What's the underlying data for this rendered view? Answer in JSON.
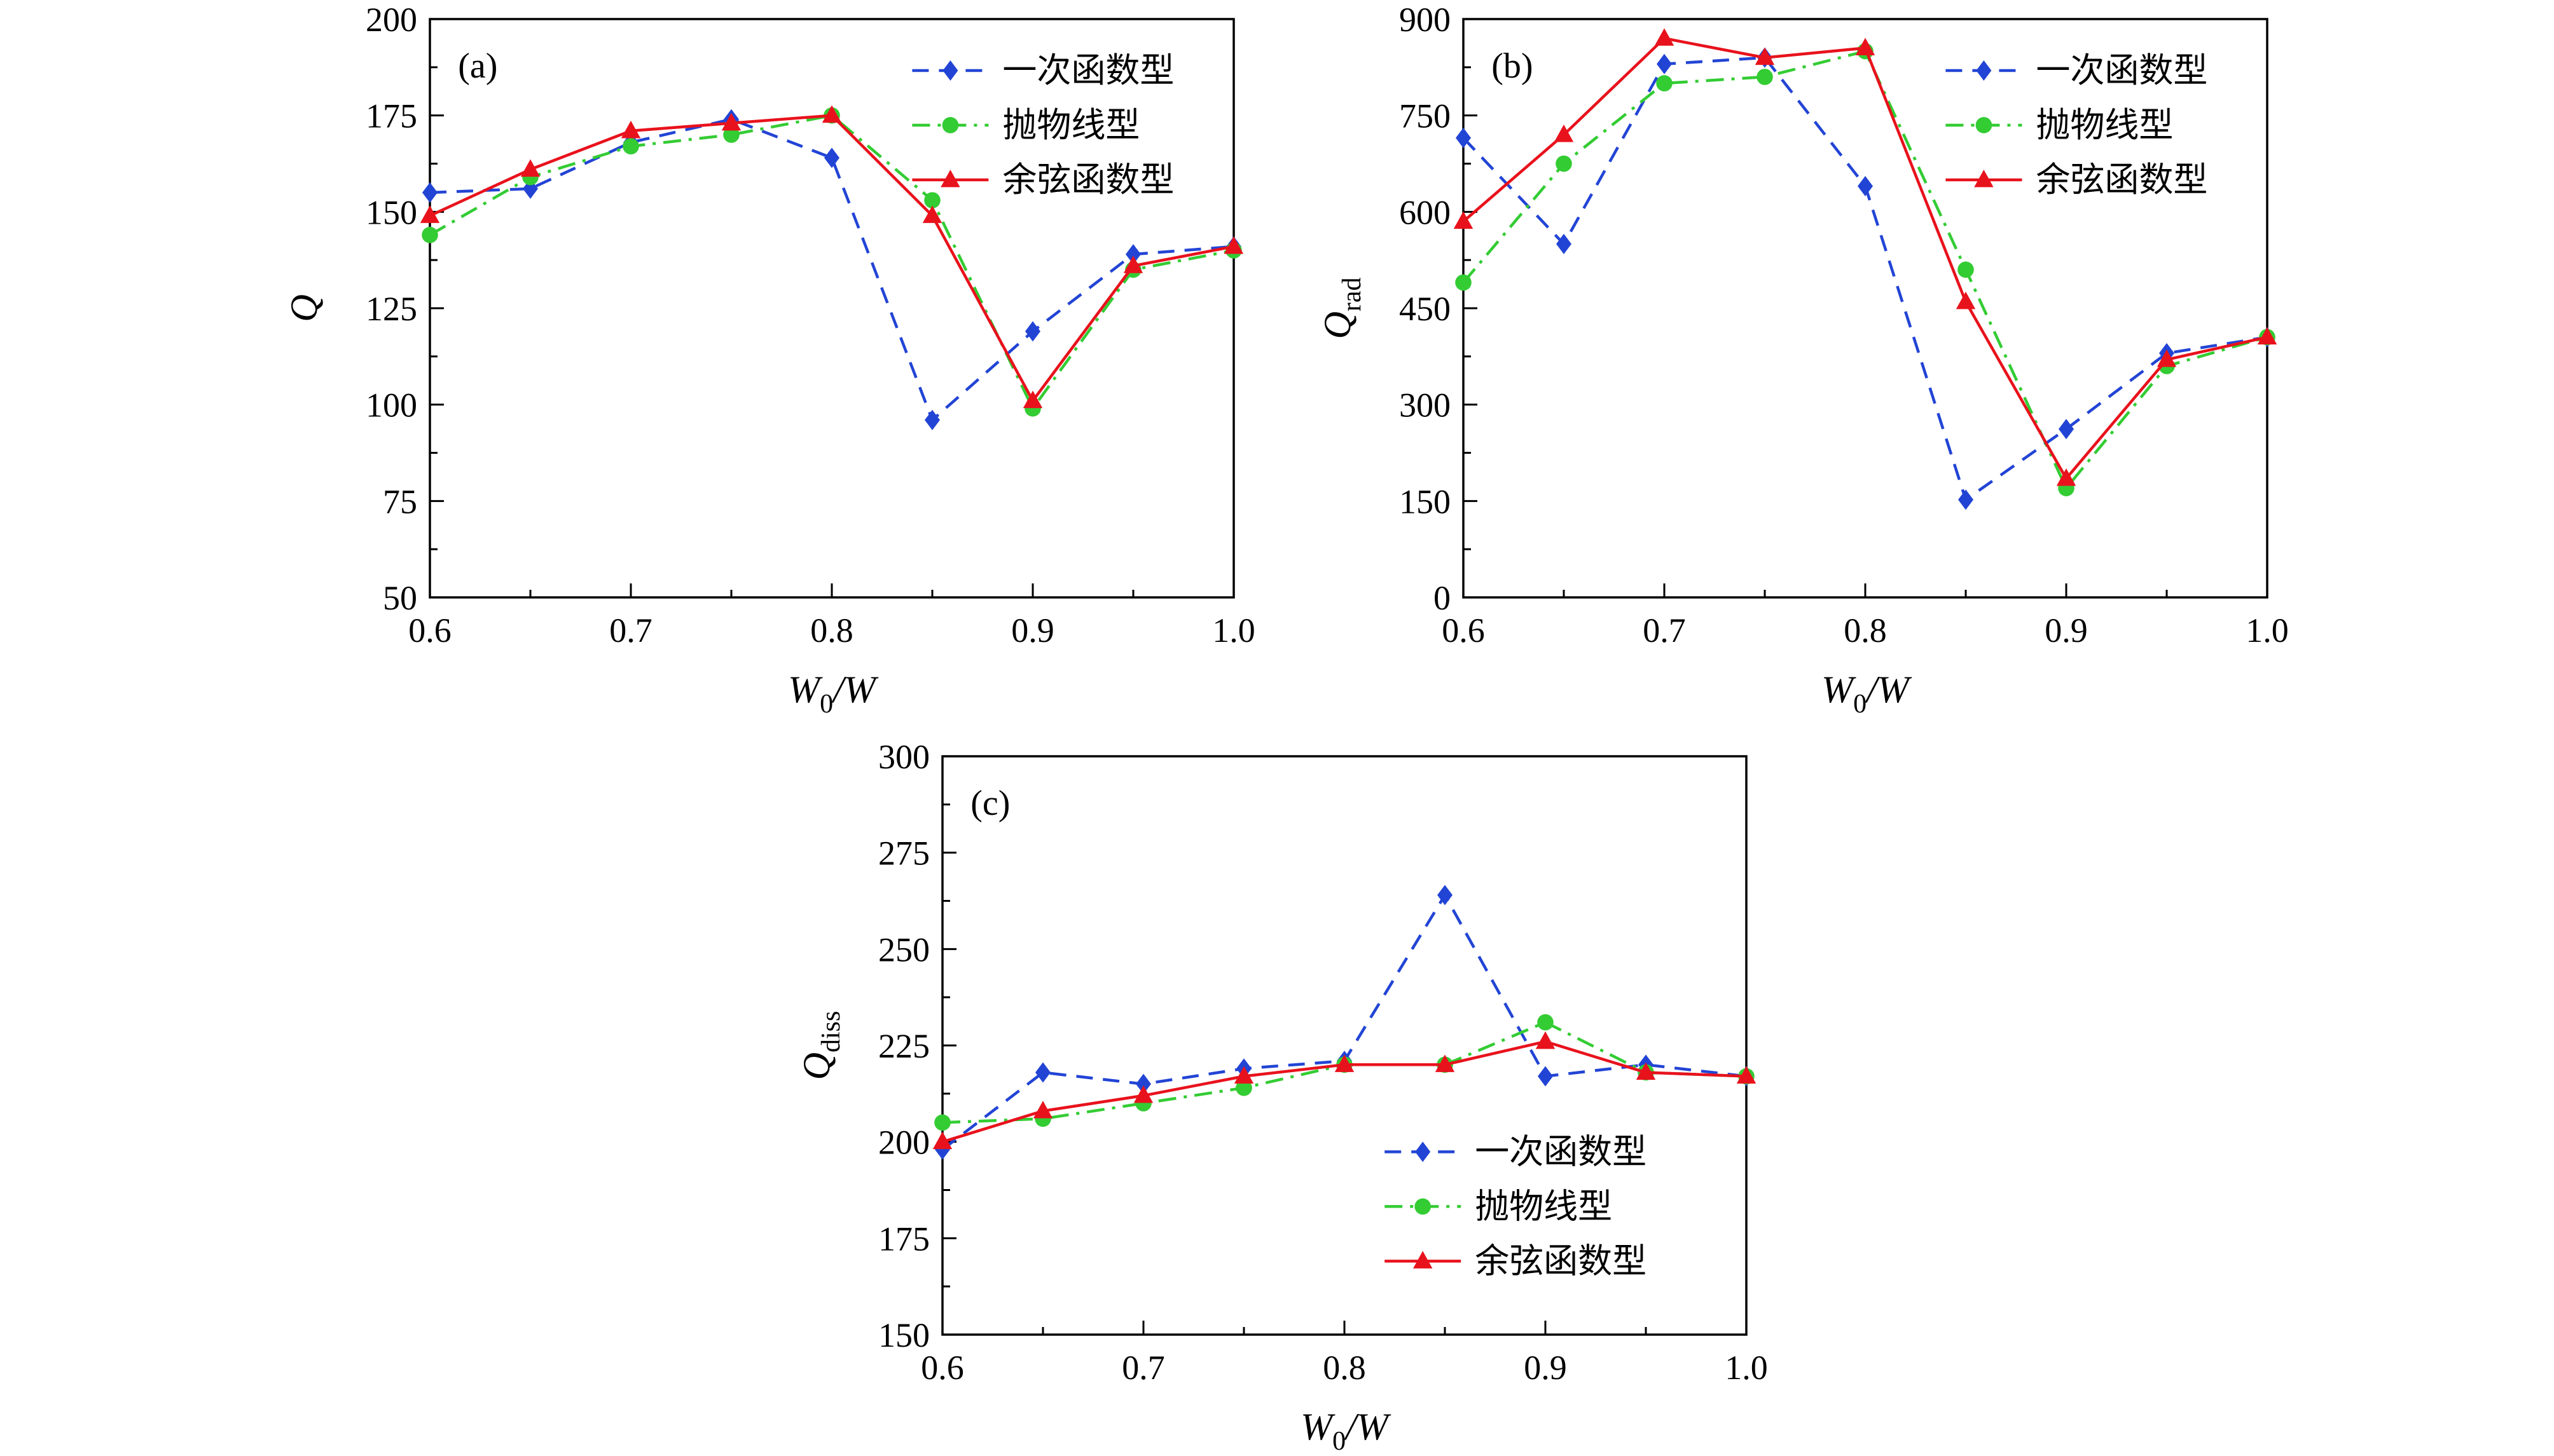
{
  "figure": {
    "background": "#ffffff",
    "text_color": "#000000",
    "legend_labels": [
      "一次函数型",
      "抛物线型",
      "余弦函数型"
    ]
  },
  "chart_data": [
    {
      "id": "a",
      "type": "line",
      "panel_label": "(a)",
      "xlabel": "W_0/W",
      "ylabel": "Q",
      "xlim": [
        0.6,
        1.0
      ],
      "ylim": [
        50,
        200
      ],
      "xticks": [
        0.6,
        0.7,
        0.8,
        0.9,
        1.0
      ],
      "xtick_labels": [
        "0.6",
        "0.7",
        "0.8",
        "0.9",
        "1.0"
      ],
      "yticks": [
        50,
        75,
        100,
        125,
        150,
        175,
        200
      ],
      "ytick_labels": [
        "50",
        "75",
        "100",
        "125",
        "150",
        "175",
        "200"
      ],
      "x": [
        0.6,
        0.65,
        0.7,
        0.75,
        0.8,
        0.85,
        0.9,
        0.95,
        1.0
      ],
      "legend": {
        "fx": 0.6,
        "fy": 0.045
      },
      "grid": false,
      "series": [
        {
          "sid": "linear",
          "name": "一次函数型",
          "color": "#2244d5",
          "marker": "diamond",
          "line": "dashed",
          "values": [
            155,
            156,
            168,
            174,
            164,
            96,
            119,
            139,
            141
          ]
        },
        {
          "sid": "parabola",
          "name": "抛物线型",
          "color": "#33cc33",
          "marker": "circle",
          "line": "dashdot",
          "values": [
            144,
            159,
            167,
            170,
            175,
            153,
            99,
            135,
            140
          ]
        },
        {
          "sid": "cosine",
          "name": "余弦函数型",
          "color": "#e8121c",
          "marker": "triangle",
          "line": "solid",
          "values": [
            149,
            161,
            171,
            173,
            175,
            149,
            101,
            136,
            141
          ]
        }
      ]
    },
    {
      "id": "b",
      "type": "line",
      "panel_label": "(b)",
      "xlabel": "W_0/W",
      "ylabel": "Q_rad",
      "xlim": [
        0.6,
        1.0
      ],
      "ylim": [
        0,
        900
      ],
      "xticks": [
        0.6,
        0.7,
        0.8,
        0.9,
        1.0
      ],
      "xtick_labels": [
        "0.6",
        "0.7",
        "0.8",
        "0.9",
        "1.0"
      ],
      "yticks": [
        0,
        150,
        300,
        450,
        600,
        750,
        900
      ],
      "ytick_labels": [
        "0",
        "150",
        "300",
        "450",
        "600",
        "750",
        "900"
      ],
      "x": [
        0.6,
        0.65,
        0.7,
        0.75,
        0.8,
        0.85,
        0.9,
        0.95,
        1.0
      ],
      "legend": {
        "fx": 0.6,
        "fy": 0.045
      },
      "grid": false,
      "series": [
        {
          "sid": "linear",
          "name": "一次函数型",
          "color": "#2244d5",
          "marker": "diamond",
          "line": "dashed",
          "values": [
            715,
            550,
            830,
            840,
            640,
            152,
            262,
            380,
            405
          ]
        },
        {
          "sid": "parabola",
          "name": "抛物线型",
          "color": "#33cc33",
          "marker": "circle",
          "line": "dashdot",
          "values": [
            490,
            675,
            800,
            810,
            850,
            510,
            170,
            360,
            405
          ]
        },
        {
          "sid": "cosine",
          "name": "余弦函数型",
          "color": "#e8121c",
          "marker": "triangle",
          "line": "solid",
          "values": [
            585,
            720,
            870,
            840,
            855,
            460,
            185,
            370,
            405
          ]
        }
      ]
    },
    {
      "id": "c",
      "type": "line",
      "panel_label": "(c)",
      "xlabel": "W_0/W",
      "ylabel": "Q_diss",
      "xlim": [
        0.6,
        1.0
      ],
      "ylim": [
        150,
        300
      ],
      "xticks": [
        0.6,
        0.7,
        0.8,
        0.9,
        1.0
      ],
      "xtick_labels": [
        "0.6",
        "0.7",
        "0.8",
        "0.9",
        "1.0"
      ],
      "yticks": [
        150,
        175,
        200,
        225,
        250,
        275,
        300
      ],
      "ytick_labels": [
        "150",
        "175",
        "200",
        "225",
        "250",
        "275",
        "300"
      ],
      "x": [
        0.6,
        0.65,
        0.7,
        0.75,
        0.8,
        0.85,
        0.9,
        0.95,
        1.0
      ],
      "legend": {
        "fx": 0.55,
        "fy": 0.64
      },
      "grid": false,
      "series": [
        {
          "sid": "linear",
          "name": "一次函数型",
          "color": "#2244d5",
          "marker": "diamond",
          "line": "dashed",
          "values": [
            198,
            218,
            215,
            219,
            221,
            264,
            217,
            220,
            217
          ]
        },
        {
          "sid": "parabola",
          "name": "抛物线型",
          "color": "#33cc33",
          "marker": "circle",
          "line": "dashdot",
          "values": [
            205,
            206,
            210,
            214,
            220,
            220,
            231,
            218,
            217
          ]
        },
        {
          "sid": "cosine",
          "name": "余弦函数型",
          "color": "#e8121c",
          "marker": "triangle",
          "line": "solid",
          "values": [
            200,
            208,
            212,
            217,
            220,
            220,
            226,
            218,
            217
          ]
        }
      ]
    }
  ]
}
